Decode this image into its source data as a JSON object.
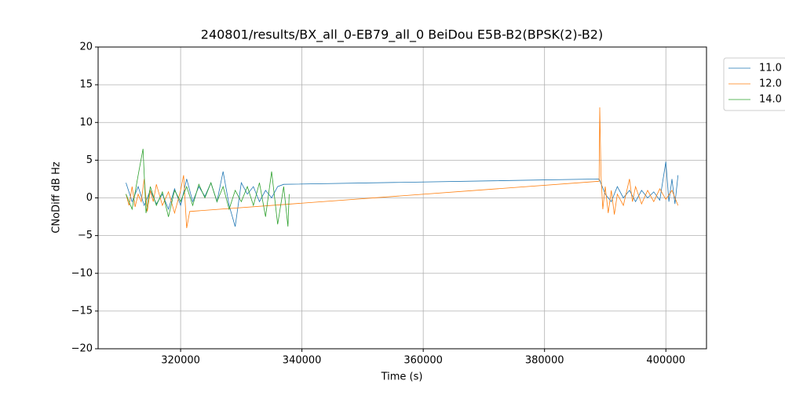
{
  "chart_data": {
    "type": "line",
    "title": "240801/results/BX_all_0-EB79_all_0 BeiDou E5B-B2(BPSK(2)-B2)",
    "x_label": "Time (s)",
    "y_label": "CNoDiff dB Hz",
    "xlim": [
      306400,
      406700
    ],
    "ylim": [
      -20,
      20
    ],
    "xticks": [
      320000,
      340000,
      360000,
      380000,
      400000
    ],
    "yticks": [
      {
        "value": -20,
        "label": "−20"
      },
      {
        "value": -15,
        "label": "−15"
      },
      {
        "value": -10,
        "label": "−10"
      },
      {
        "value": -5,
        "label": "−5"
      },
      0,
      5,
      10,
      15,
      20
    ],
    "grid": true,
    "legend": "outside right",
    "series": [
      {
        "name": "11.0",
        "color": "#1f77b4",
        "x": [
          311000,
          312000,
          313000,
          314000,
          315000,
          316000,
          317000,
          318000,
          319000,
          320000,
          321000,
          322000,
          323000,
          324000,
          325000,
          326000,
          327000,
          328000,
          329000,
          330000,
          331000,
          332000,
          333000,
          334000,
          335000,
          336000,
          337000,
          389000,
          390000,
          391000,
          392000,
          393000,
          394000,
          395000,
          396000,
          397000,
          398000,
          399000,
          400000,
          400500,
          401000,
          401500,
          402000
        ],
        "values": [
          2.0,
          -0.5,
          1.5,
          -1.0,
          1.0,
          -0.8,
          0.5,
          -1.5,
          1.2,
          -1.0,
          2.5,
          -0.5,
          1.5,
          0.2,
          2.0,
          -0.5,
          3.5,
          -1.0,
          -3.8,
          2.0,
          0.5,
          1.5,
          -0.5,
          1.0,
          0.0,
          1.5,
          1.8,
          2.5,
          0.5,
          -0.5,
          1.5,
          0.0,
          1.0,
          -0.5,
          1.0,
          0.0,
          0.8,
          -0.3,
          4.8,
          -0.5,
          2.5,
          -0.8,
          3.0
        ]
      },
      {
        "name": "12.0",
        "color": "#ff7f0e",
        "x": [
          311000,
          311500,
          312000,
          312500,
          313000,
          313500,
          314000,
          314500,
          315000,
          315500,
          316000,
          317000,
          318000,
          319000,
          320000,
          320500,
          321000,
          321500,
          389000,
          389100,
          389300,
          389600,
          390000,
          390500,
          391000,
          391500,
          392000,
          393000,
          394000,
          394500,
          395000,
          396000,
          397000,
          398000,
          399000,
          400000,
          401000,
          402000
        ],
        "values": [
          0.5,
          -1.0,
          1.5,
          -1.2,
          0.5,
          -0.5,
          2.5,
          -1.8,
          1.0,
          -0.5,
          1.8,
          -1.0,
          0.8,
          -2.0,
          1.0,
          3.0,
          -4.0,
          -1.8,
          2.2,
          12.0,
          3.0,
          -1.5,
          1.5,
          -2.0,
          1.0,
          -2.2,
          0.5,
          -1.0,
          2.5,
          -0.5,
          1.5,
          -0.8,
          1.0,
          -0.5,
          1.2,
          -0.2,
          1.0,
          -1.0
        ]
      },
      {
        "name": "14.0",
        "color": "#2ca02c",
        "x": [
          311000,
          312000,
          313000,
          313800,
          314300,
          315000,
          316000,
          317000,
          318000,
          319000,
          320000,
          321000,
          322000,
          323000,
          324000,
          325000,
          326000,
          327000,
          328000,
          329000,
          330000,
          331000,
          332000,
          333000,
          334000,
          335000,
          336000,
          337000,
          337700,
          337900
        ],
        "values": [
          0.5,
          -1.5,
          3.0,
          6.5,
          -2.0,
          1.5,
          -1.0,
          0.8,
          -2.5,
          1.0,
          -0.5,
          1.5,
          -1.0,
          1.8,
          0.0,
          2.0,
          -0.5,
          1.5,
          -1.5,
          1.0,
          -0.5,
          1.5,
          -1.0,
          2.0,
          -2.5,
          3.5,
          -3.5,
          1.5,
          -3.8,
          0.5
        ]
      }
    ]
  }
}
